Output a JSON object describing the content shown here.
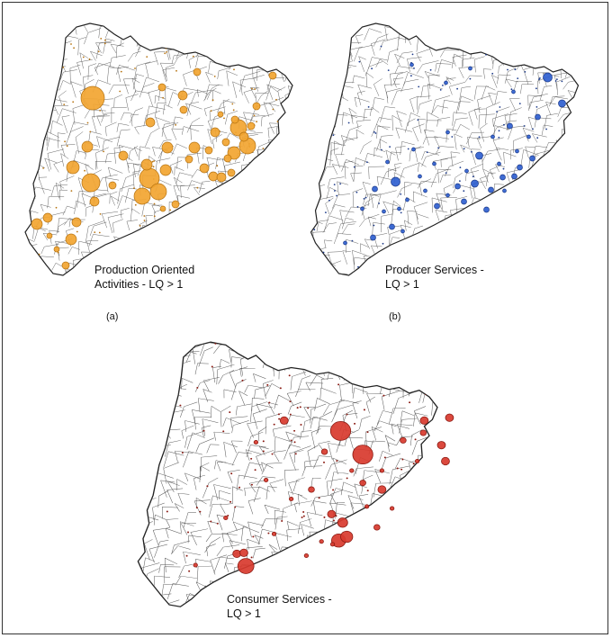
{
  "panels": [
    {
      "id": "a",
      "label_line1": "Production Oriented",
      "label_line2": "Activities - LQ > 1",
      "letter": "(a)",
      "color": "#f2a531",
      "stroke": "#b77412",
      "bubbles": [
        [
          78,
          87,
          13
        ],
        [
          76,
          181,
          10
        ],
        [
          240,
          120,
          9
        ],
        [
          250,
          140,
          9
        ],
        [
          235,
          148,
          7
        ],
        [
          72,
          141,
          6
        ],
        [
          56,
          164,
          7
        ],
        [
          16,
          227,
          6
        ],
        [
          28,
          220,
          5
        ],
        [
          60,
          225,
          5
        ],
        [
          54,
          244,
          6
        ],
        [
          80,
          202,
          5
        ],
        [
          133,
          196,
          9
        ],
        [
          141,
          176,
          11
        ],
        [
          151,
          191,
          9
        ],
        [
          138,
          161,
          6
        ],
        [
          159,
          167,
          6
        ],
        [
          112,
          151,
          5
        ],
        [
          161,
          142,
          6
        ],
        [
          142,
          114,
          5
        ],
        [
          178,
          84,
          5
        ],
        [
          179,
          100,
          4
        ],
        [
          191,
          142,
          6
        ],
        [
          202,
          165,
          5
        ],
        [
          212,
          174,
          5
        ],
        [
          221,
          175,
          5
        ],
        [
          214,
          125,
          5
        ],
        [
          232,
          170,
          4
        ],
        [
          236,
          111,
          4
        ],
        [
          246,
          130,
          5
        ],
        [
          254,
          118,
          4
        ],
        [
          260,
          96,
          4
        ],
        [
          278,
          62,
          4
        ],
        [
          194,
          58,
          4
        ],
        [
          155,
          75,
          4
        ],
        [
          48,
          273,
          4
        ],
        [
          38,
          255,
          3
        ],
        [
          30,
          240,
          3
        ],
        [
          100,
          184,
          4
        ],
        [
          185,
          155,
          4
        ],
        [
          207,
          145,
          4
        ],
        [
          228,
          154,
          4
        ],
        [
          226,
          136,
          4
        ],
        [
          220,
          105,
          3
        ],
        [
          170,
          205,
          4
        ],
        [
          156,
          210,
          3
        ]
      ]
    },
    {
      "id": "b",
      "label_line1": "Producer Services -",
      "label_line2": "LQ > 1",
      "letter": "(b)",
      "color": "#2f5fd0",
      "stroke": "#1c3a8a",
      "bubbles": [
        [
          266,
          64,
          5
        ],
        [
          282,
          93,
          4
        ],
        [
          97,
          180,
          5
        ],
        [
          190,
          151,
          4
        ],
        [
          185,
          182,
          4
        ],
        [
          203,
          189,
          3
        ],
        [
          198,
          211,
          3
        ],
        [
          229,
          174,
          3
        ],
        [
          216,
          175,
          3
        ],
        [
          235,
          164,
          3
        ],
        [
          249,
          154,
          3
        ],
        [
          173,
          202,
          3
        ],
        [
          166,
          185,
          3
        ],
        [
          143,
          207,
          3
        ],
        [
          101,
          210,
          2
        ],
        [
          93,
          230,
          3
        ],
        [
          72,
          242,
          3
        ],
        [
          74,
          188,
          3
        ],
        [
          124,
          174,
          2
        ],
        [
          117,
          144,
          2
        ],
        [
          115,
          50,
          2
        ],
        [
          153,
          70,
          2
        ],
        [
          180,
          54,
          2
        ],
        [
          140,
          160,
          2
        ],
        [
          224,
          118,
          3
        ],
        [
          255,
          108,
          3
        ],
        [
          245,
          130,
          2
        ],
        [
          212,
          160,
          2
        ],
        [
          110,
          200,
          2
        ],
        [
          60,
          210,
          2
        ],
        [
          84,
          213,
          2
        ],
        [
          130,
          190,
          2
        ],
        [
          155,
          195,
          2
        ],
        [
          176,
          168,
          2
        ],
        [
          205,
          130,
          2
        ],
        [
          218,
          190,
          2
        ],
        [
          232,
          146,
          2
        ],
        [
          228,
          80,
          2
        ],
        [
          88,
          158,
          2
        ],
        [
          41,
          248,
          2
        ],
        [
          105,
          235,
          2
        ],
        [
          155,
          125,
          2
        ]
      ]
    },
    {
      "id": "c",
      "label_line1": "Consumer Services -",
      "label_line2": "LQ > 1",
      "letter": "",
      "color": "#d83a2e",
      "stroke": "#8a1a12",
      "bubbles": [
        [
          204,
          98,
          10
        ],
        [
          226,
          123,
          10
        ],
        [
          202,
          214,
          7
        ],
        [
          210,
          210,
          6
        ],
        [
          206,
          195,
          5
        ],
        [
          195,
          186,
          4
        ],
        [
          245,
          160,
          4
        ],
        [
          240,
          200,
          3
        ],
        [
          188,
          120,
          3
        ],
        [
          148,
          87,
          4
        ],
        [
          287,
          87,
          4
        ],
        [
          312,
          84,
          4
        ],
        [
          304,
          113,
          4
        ],
        [
          308,
          130,
          4
        ],
        [
          286,
          100,
          3
        ],
        [
          110,
          241,
          8
        ],
        [
          101,
          228,
          4
        ],
        [
          108,
          227,
          4
        ],
        [
          226,
          153,
          3
        ],
        [
          266,
          108,
          3
        ],
        [
          175,
          160,
          3
        ],
        [
          155,
          170,
          2
        ],
        [
          215,
          140,
          2
        ],
        [
          230,
          178,
          2
        ],
        [
          185,
          215,
          2
        ],
        [
          196,
          218,
          2
        ],
        [
          138,
          207,
          2
        ],
        [
          60,
          240,
          2
        ],
        [
          120,
          110,
          2
        ],
        [
          280,
          130,
          2
        ],
        [
          255,
          180,
          2
        ],
        [
          90,
          190,
          2
        ],
        [
          130,
          150,
          2
        ],
        [
          170,
          230,
          2
        ],
        [
          245,
          140,
          2
        ]
      ]
    }
  ]
}
